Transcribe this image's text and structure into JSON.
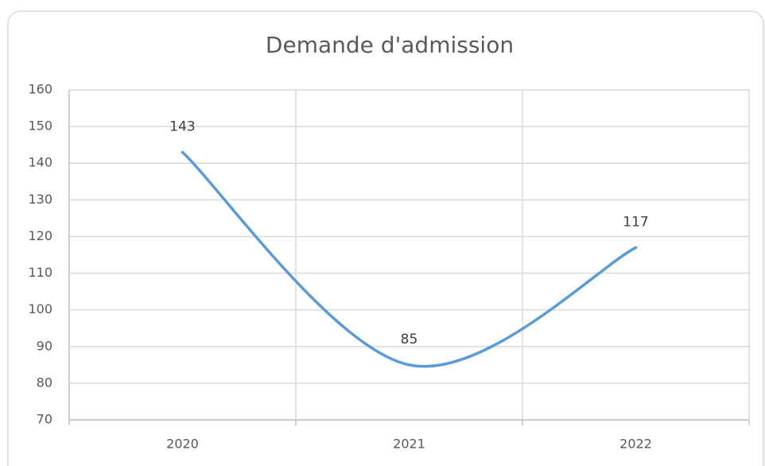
{
  "chart_data": {
    "type": "line",
    "title": "Demande d'admission",
    "categories": [
      "2020",
      "2021",
      "2022"
    ],
    "series": [
      {
        "name": "Demande d'admission",
        "color": "#5b9bd5",
        "values": [
          143,
          85,
          117
        ]
      }
    ],
    "ylim": [
      70,
      160
    ],
    "yticks": [
      70,
      80,
      90,
      100,
      110,
      120,
      130,
      140,
      150,
      160
    ],
    "grid": true,
    "smooth": true
  }
}
